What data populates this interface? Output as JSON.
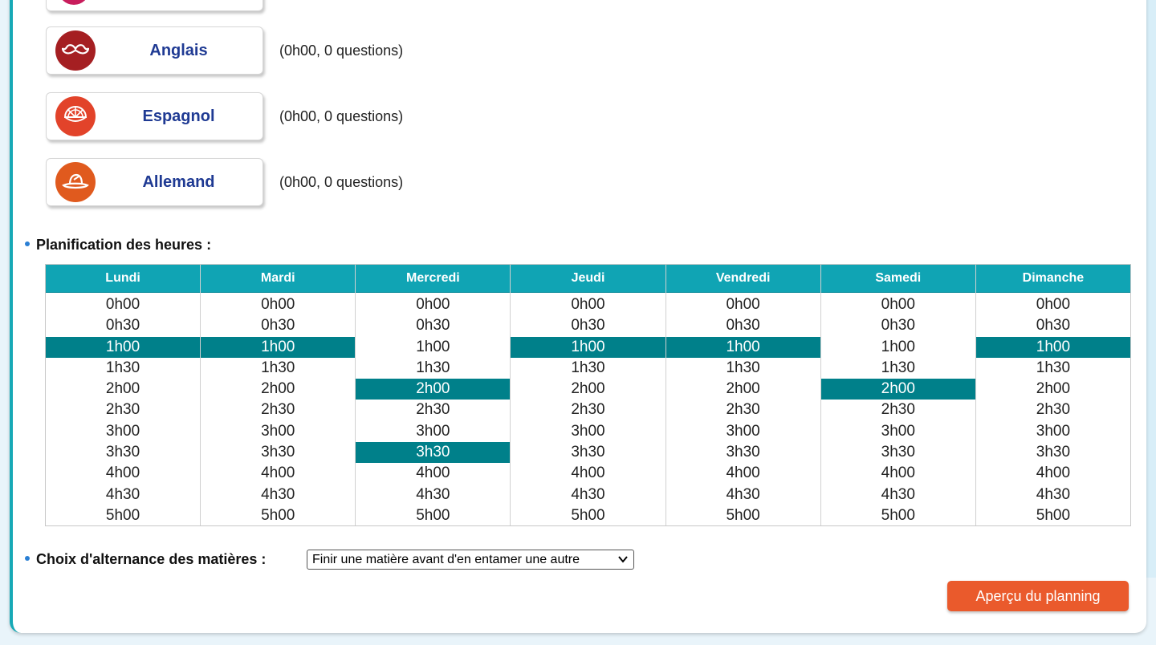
{
  "subjects": [
    {
      "name": "Anglais",
      "info": "(0h00, 0 questions)",
      "icon": "mustache-icon",
      "color": "#a51f22"
    },
    {
      "name": "Espagnol",
      "info": "(0h00, 0 questions)",
      "icon": "fan-icon",
      "color": "#e2432a"
    },
    {
      "name": "Allemand",
      "info": "(0h00, 0 questions)",
      "icon": "hat-icon",
      "color": "#e05a1e"
    }
  ],
  "planning": {
    "label": "Planification des heures :",
    "days": [
      {
        "name": "Lundi",
        "selected": [
          "1h00"
        ]
      },
      {
        "name": "Mardi",
        "selected": [
          "1h00"
        ]
      },
      {
        "name": "Mercredi",
        "selected": [
          "2h00",
          "3h30"
        ]
      },
      {
        "name": "Jeudi",
        "selected": [
          "1h00"
        ]
      },
      {
        "name": "Vendredi",
        "selected": [
          "1h00"
        ]
      },
      {
        "name": "Samedi",
        "selected": [
          "2h00"
        ]
      },
      {
        "name": "Dimanche",
        "selected": [
          "1h00"
        ]
      }
    ],
    "slots": [
      "0h00",
      "0h30",
      "1h00",
      "1h30",
      "2h00",
      "2h30",
      "3h00",
      "3h30",
      "4h00",
      "4h30",
      "5h00"
    ],
    "header_color": "#10a4b4",
    "selected_color": "#00808a"
  },
  "alternance": {
    "label": "Choix d'alternance des matières :",
    "value": "Finir une matière avant d'en entamer une autre"
  },
  "preview_button": {
    "label": "Aperçu du planning",
    "color": "#ea5a2c"
  }
}
